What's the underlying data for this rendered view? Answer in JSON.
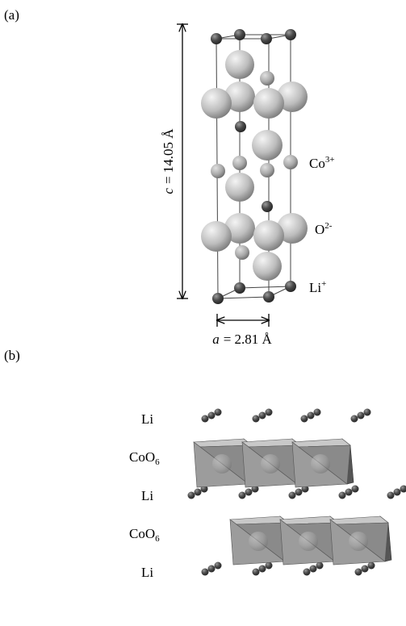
{
  "panel_a": {
    "label": "(a)",
    "c_axis": {
      "variable": "c",
      "text": "= 14.05 Å"
    },
    "a_axis": {
      "variable": "a",
      "text": "= 2.81 Å"
    },
    "ions": [
      {
        "element": "Co",
        "charge": "3+"
      },
      {
        "element": "O",
        "charge": "2-"
      },
      {
        "element": "Li",
        "charge": "+"
      }
    ]
  },
  "panel_b": {
    "label": "(b)",
    "layers": [
      {
        "base": "Li"
      },
      {
        "base": "CoO",
        "sub": "6"
      },
      {
        "base": "Li"
      },
      {
        "base": "CoO",
        "sub": "6"
      },
      {
        "base": "Li"
      }
    ]
  }
}
